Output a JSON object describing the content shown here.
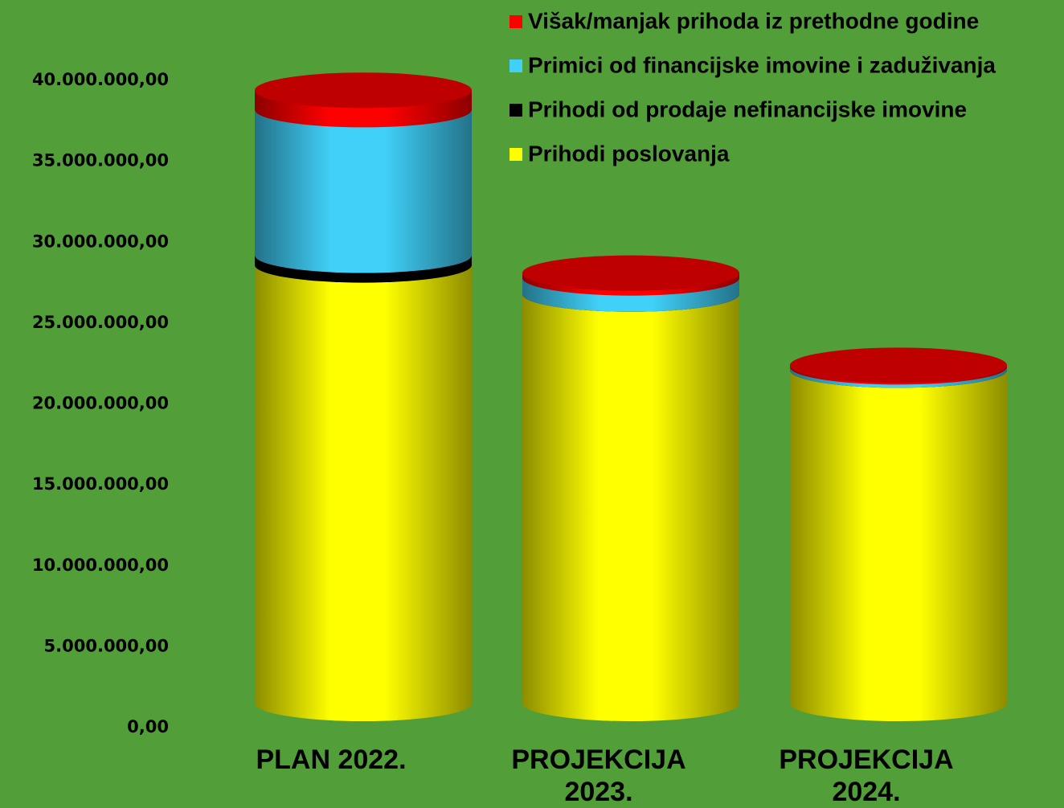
{
  "chart_data": {
    "type": "cylinder_stacked_bar",
    "categories": [
      "PLAN 2022.",
      "PROJEKCIJA 2023.",
      "PROJEKCIJA 2024."
    ],
    "series": [
      {
        "name": "Prihodi poslovanja",
        "color": "#ffff00",
        "values": [
          27100000,
          25300000,
          20600000
        ]
      },
      {
        "name": "Prihodi od prodaje nefinancijske imovine",
        "color": "#000000",
        "values": [
          600000,
          0,
          0
        ]
      },
      {
        "name": "Primici od financijske imovine i zaduživanja",
        "color": "#40d0f8",
        "values": [
          9000000,
          1000000,
          200000
        ]
      },
      {
        "name": "Višak/manjak prihoda iz prethodne godine",
        "color": "#ff0000",
        "values": [
          1200000,
          300000,
          100000
        ]
      }
    ],
    "ylim": [
      0,
      40000000
    ],
    "yticks": [
      {
        "value": 0,
        "label": "0,00"
      },
      {
        "value": 5000000,
        "label": "5.000.000,00"
      },
      {
        "value": 10000000,
        "label": "10.000.000,00"
      },
      {
        "value": 15000000,
        "label": "15.000.000,00"
      },
      {
        "value": 20000000,
        "label": "20.000.000,00"
      },
      {
        "value": 25000000,
        "label": "25.000.000,00"
      },
      {
        "value": 30000000,
        "label": "30.000.000,00"
      },
      {
        "value": 35000000,
        "label": "35.000.000,00"
      },
      {
        "value": 40000000,
        "label": "40.000.000,00"
      }
    ],
    "legend": "top-right",
    "grid": false
  }
}
